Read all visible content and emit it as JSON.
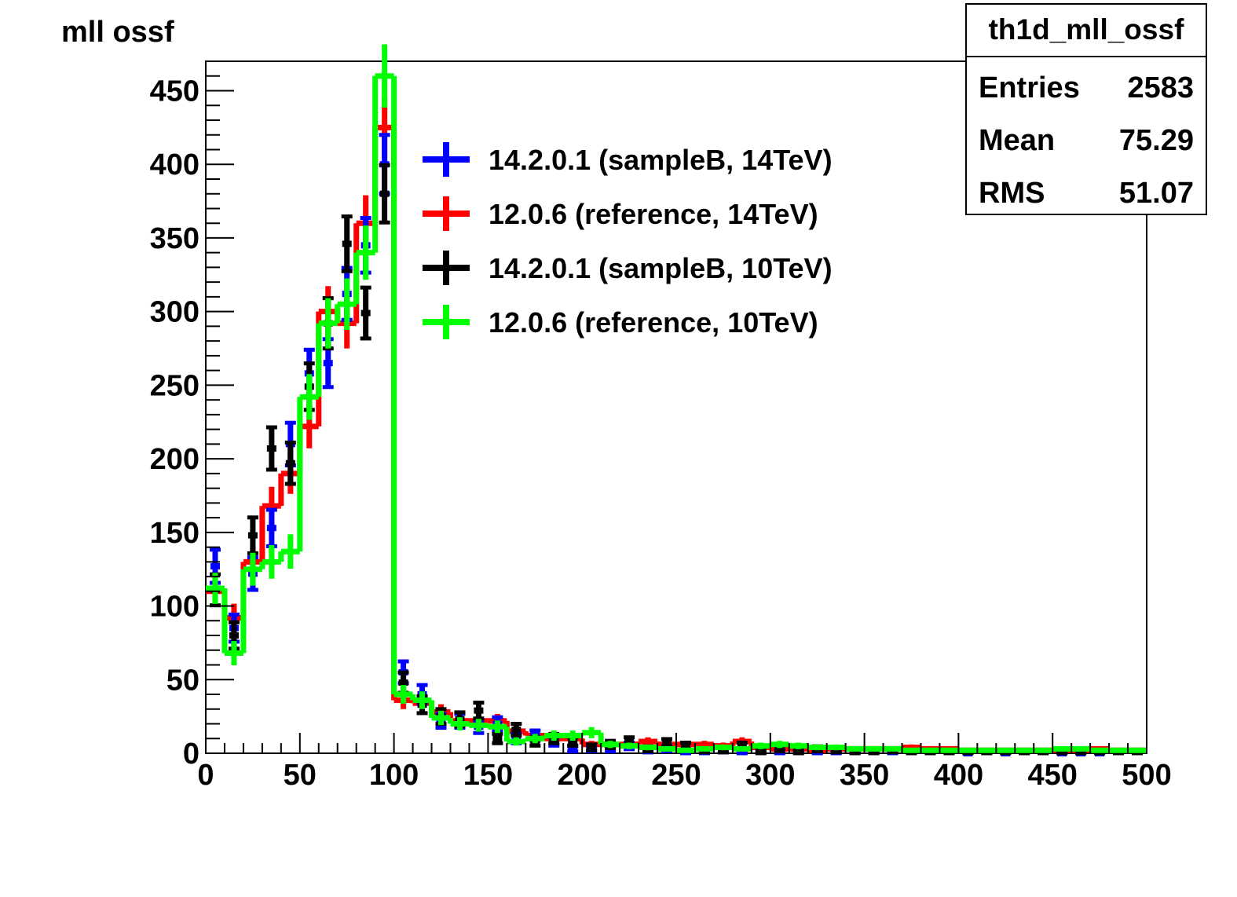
{
  "chart_data": {
    "type": "histogram",
    "title": "mll ossf",
    "xlabel": "",
    "ylabel": "",
    "xlim": [
      0,
      500
    ],
    "ylim": [
      0,
      470
    ],
    "bin_width": 10,
    "xticks": [
      "0",
      "50",
      "100",
      "150",
      "200",
      "250",
      "300",
      "350",
      "400",
      "450",
      "500"
    ],
    "yticks": [
      "0",
      "50",
      "100",
      "150",
      "200",
      "250",
      "300",
      "350",
      "400",
      "450"
    ],
    "grid": false,
    "legend_position": "top-center",
    "stats_box": {
      "name": "th1d_mll_ossf",
      "rows": [
        {
          "label": "Entries",
          "value": "2583"
        },
        {
          "label": "Mean",
          "value": "75.29"
        },
        {
          "label": "RMS",
          "value": "51.07"
        }
      ]
    },
    "series": [
      {
        "name": "14.2.0.1 (sampleB, 14TeV)",
        "color": "#0000ff",
        "style": "error-bars",
        "values": [
          127,
          85,
          122,
          153,
          210,
          258,
          265,
          312,
          345,
          400,
          55,
          40,
          22,
          22,
          18,
          20,
          10,
          12,
          8,
          3,
          3,
          3,
          5,
          2,
          3,
          1,
          1,
          2,
          1,
          2,
          1,
          2,
          1,
          1,
          1,
          1,
          1,
          1,
          1,
          1,
          0,
          1,
          0,
          1,
          1,
          0,
          0,
          0,
          1,
          1
        ]
      },
      {
        "name": "12.0.6 (reference, 14TeV)",
        "color": "#ff0000",
        "style": "step",
        "values": [
          110,
          92,
          130,
          168,
          190,
          222,
          300,
          292,
          360,
          425,
          36,
          34,
          28,
          22,
          22,
          22,
          15,
          12,
          10,
          10,
          6,
          6,
          6,
          8,
          6,
          6,
          6,
          5,
          8,
          4,
          3,
          3,
          2,
          3,
          3,
          3,
          3,
          4,
          3,
          3,
          2,
          2,
          2,
          2,
          2,
          2,
          2,
          3,
          2,
          2
        ]
      },
      {
        "name": "14.2.0.1 (sampleB, 10TeV)",
        "color": "#000000",
        "style": "error-bars",
        "values": [
          111,
          80,
          148,
          207,
          197,
          249,
          292,
          346,
          299,
          380,
          48,
          33,
          25,
          23,
          29,
          10,
          16,
          8,
          10,
          8,
          4,
          6,
          8,
          3,
          7,
          5,
          2,
          2,
          5,
          1,
          3,
          1,
          3,
          2,
          1,
          1,
          2,
          1,
          1,
          1,
          1,
          1,
          1,
          1,
          1,
          1,
          1,
          1,
          1,
          1
        ]
      },
      {
        "name": "12.0.6 (reference, 10TeV)",
        "color": "#00ff00",
        "style": "step",
        "values": [
          112,
          68,
          125,
          130,
          137,
          242,
          292,
          305,
          340,
          460,
          40,
          36,
          24,
          20,
          19,
          18,
          8,
          10,
          12,
          12,
          14,
          6,
          5,
          4,
          3,
          2,
          3,
          4,
          3,
          5,
          6,
          5,
          4,
          4,
          3,
          3,
          3,
          2,
          2,
          2,
          2,
          2,
          2,
          2,
          2,
          3,
          3,
          2,
          2,
          2
        ]
      }
    ]
  }
}
